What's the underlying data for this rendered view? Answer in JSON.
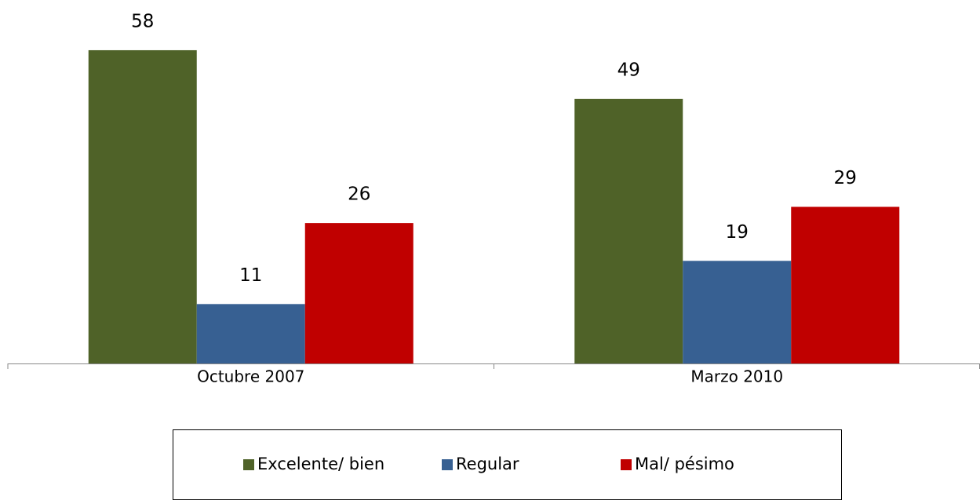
{
  "chart_data": {
    "type": "bar",
    "categories": [
      "Octubre 2007",
      "Marzo 2010"
    ],
    "series": [
      {
        "name": "Excelente/ bien",
        "color": "#4f6228",
        "values": [
          58,
          49
        ]
      },
      {
        "name": "Regular",
        "color": "#376092",
        "values": [
          11,
          19
        ]
      },
      {
        "name": "Mal/ pésimo",
        "color": "#c00000",
        "values": [
          26,
          29
        ]
      }
    ],
    "legend": "bottom"
  }
}
